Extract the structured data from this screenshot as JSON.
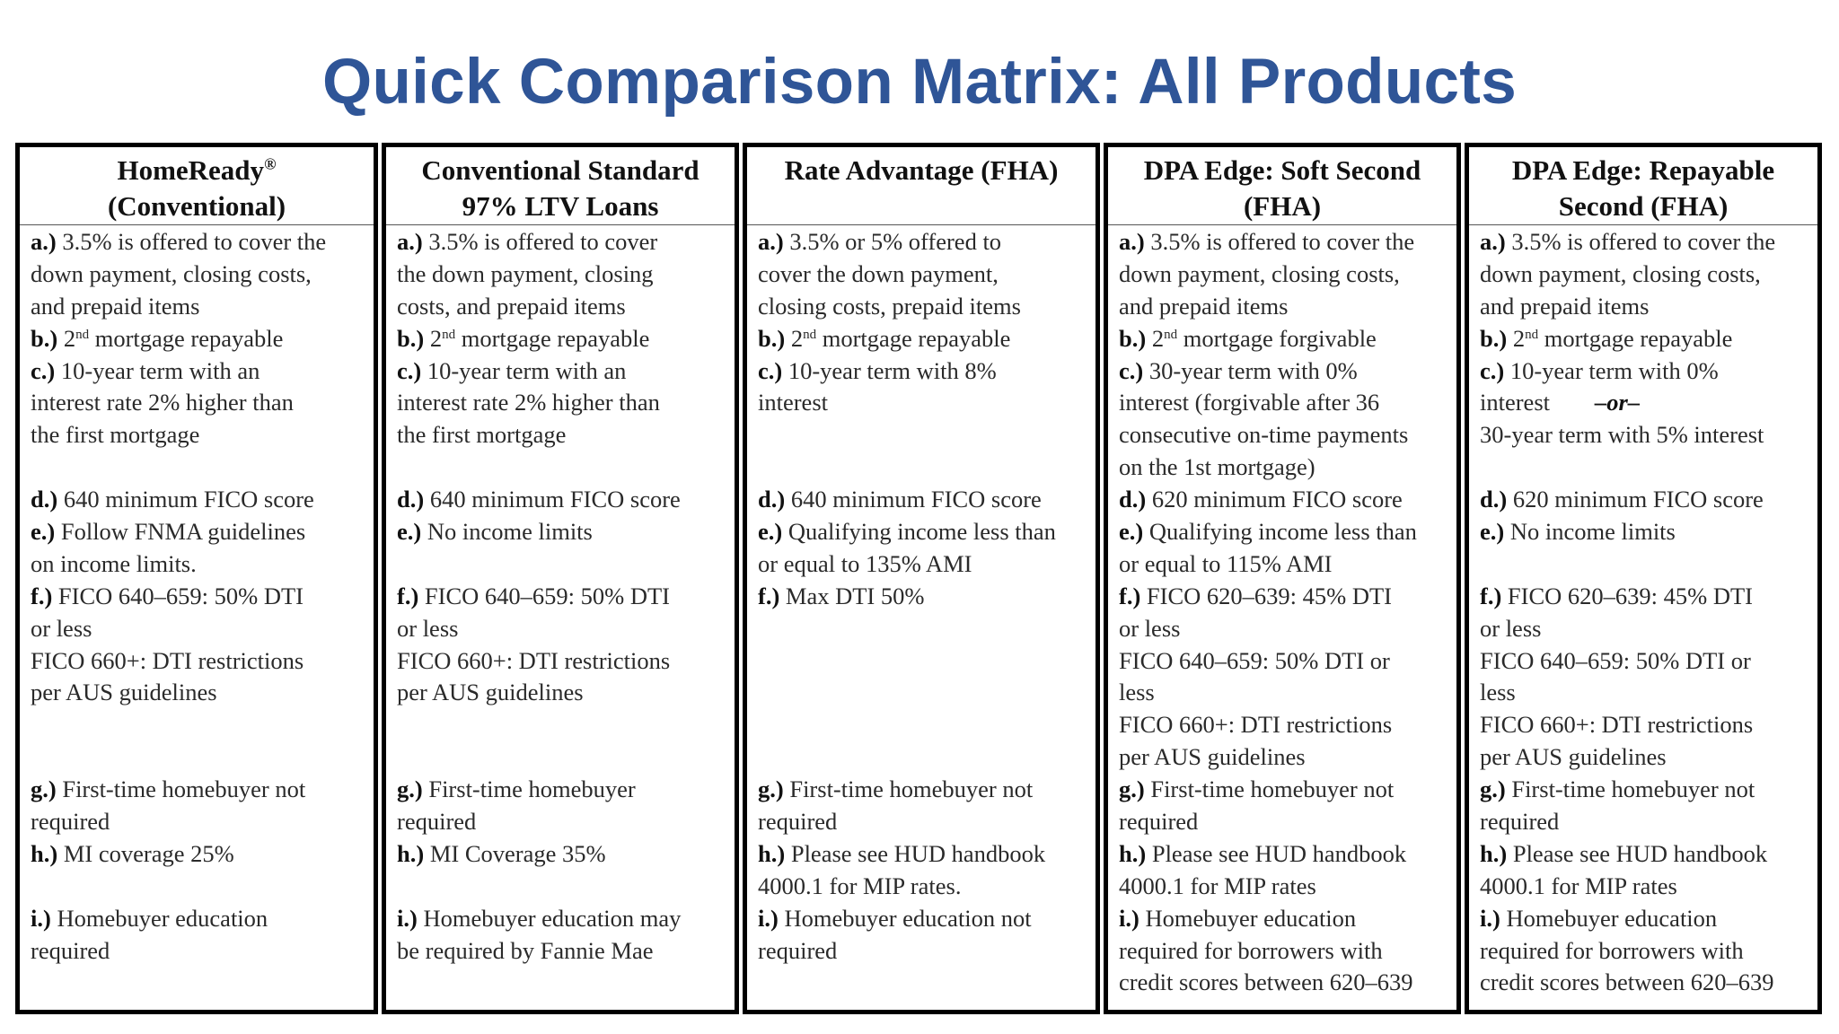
{
  "title": "Quick Comparison Matrix: All Products",
  "columns": [
    {
      "head_line1": "HomeReady",
      "head_mark": "®",
      "head_line2": "(Conventional)",
      "a_label": "a.)",
      "a1": "3.5% is offered to cover the",
      "a2": "down payment, closing costs,",
      "a3": "and prepaid items",
      "b_label": "b.)",
      "b_ord": "2",
      "b_sup": "nd",
      "b_text": "mortgage repayable",
      "c_label": "c.)",
      "c1": "10-year term with an",
      "c2": "interest rate 2% higher than",
      "c3": "the first mortgage",
      "d_label": "d.)",
      "d1": "640 minimum FICO score",
      "e_label": "e.)",
      "e1": "Follow FNMA guidelines",
      "e2": "on income limits.",
      "f_label": "f.)",
      "f1": "FICO 640–659: 50% DTI",
      "f2": "or less",
      "f3": "FICO 660+: DTI restrictions",
      "f4": "per AUS guidelines",
      "g_label": "g.)",
      "g1": "First-time homebuyer not",
      "g2": "required",
      "h_label": "h.)",
      "h1": "MI coverage 25%",
      "i_label": "i.)",
      "i1": "Homebuyer education",
      "i2": "required"
    },
    {
      "head_line1": "Conventional Standard",
      "head_line2": "97% LTV Loans",
      "a_label": "a.)",
      "a1": "3.5% is offered to cover",
      "a2": "the down payment, closing",
      "a3": "costs, and prepaid items",
      "b_label": "b.)",
      "b_ord": "2",
      "b_sup": "nd",
      "b_text": "mortgage repayable",
      "c_label": "c.)",
      "c1": "10-year term with an",
      "c2": "interest rate 2% higher than",
      "c3": "the first mortgage",
      "d_label": "d.)",
      "d1": "640 minimum FICO score",
      "e_label": "e.)",
      "e1": "No income limits",
      "f_label": "f.)",
      "f1": "FICO 640–659: 50% DTI",
      "f2": "or less",
      "f3": "FICO 660+: DTI restrictions",
      "f4": "per AUS guidelines",
      "g_label": "g.)",
      "g1": "First-time homebuyer",
      "g2": "required",
      "h_label": "h.)",
      "h1": "MI Coverage 35%",
      "i_label": "i.)",
      "i1": "Homebuyer education may",
      "i2": "be required by Fannie Mae"
    },
    {
      "head_line1": "Rate Advantage (FHA)",
      "a_label": "a.)",
      "a1": "3.5% or 5% offered to",
      "a2": "cover the down payment,",
      "a3": "closing costs, prepaid items",
      "b_label": "b.)",
      "b_ord": "2",
      "b_sup": "nd",
      "b_text": "mortgage repayable",
      "c_label": "c.)",
      "c1": "10-year term with 8%",
      "c2": "interest",
      "d_label": "d.)",
      "d1": "640 minimum FICO score",
      "e_label": "e.)",
      "e1": "Qualifying income less than",
      "e2": "or equal to 135% AMI",
      "f_label": "f.)",
      "f1": "Max DTI 50%",
      "g_label": "g.)",
      "g1": "First-time homebuyer not",
      "g2": "required",
      "h_label": "h.)",
      "h1": "Please see HUD handbook",
      "h2": "4000.1 for MIP rates.",
      "i_label": "i.)",
      "i1": "Homebuyer education not",
      "i2": "required"
    },
    {
      "head_line1": "DPA Edge: Soft Second",
      "head_line2": "(FHA)",
      "a_label": "a.)",
      "a1": "3.5% is offered to cover the",
      "a2": "down payment, closing costs,",
      "a3": "and prepaid items",
      "b_label": "b.)",
      "b_ord": "2",
      "b_sup": "nd",
      "b_text": "mortgage forgivable",
      "c_label": "c.)",
      "c1": "30-year term with 0%",
      "c2": "interest (forgivable after 36",
      "c3": "consecutive on-time payments",
      "c4": "on the 1st mortgage)",
      "d_label": "d.)",
      "d1": "620 minimum FICO score",
      "e_label": "e.)",
      "e1": "Qualifying income less than",
      "e2": "or equal to 115% AMI",
      "f_label": "f.)",
      "f1": "FICO 620–639: 45% DTI",
      "f2": "or less",
      "f3": "FICO 640–659: 50% DTI or",
      "f4": "less",
      "f5": "FICO 660+: DTI restrictions",
      "f6": "per AUS guidelines",
      "g_label": "g.)",
      "g1": "First-time homebuyer not",
      "g2": "required",
      "h_label": "h.)",
      "h1": "Please see HUD handbook",
      "h2": "4000.1 for MIP rates",
      "i_label": "i.)",
      "i1": "Homebuyer education",
      "i2": "required for borrowers with",
      "i3": "credit scores between 620–639"
    },
    {
      "head_line1": "DPA Edge: Repayable",
      "head_line2": "Second (FHA)",
      "a_label": "a.)",
      "a1": "3.5% is offered to cover the",
      "a2": "down payment, closing costs,",
      "a3": "and prepaid items",
      "b_label": "b.)",
      "b_ord": "2",
      "b_sup": "nd",
      "b_text": "mortgage repayable",
      "c_label": "c.)",
      "c1": "10-year term with 0%",
      "c2": "interest",
      "c_or": "–or–",
      "c3": "30-year term with 5% interest",
      "d_label": "d.)",
      "d1": "620 minimum FICO score",
      "e_label": "e.)",
      "e1": "No income limits",
      "f_label": "f.)",
      "f1": "FICO 620–639: 45% DTI",
      "f2": "or less",
      "f3": "FICO 640–659: 50% DTI or",
      "f4": "less",
      "f5": "FICO 660+: DTI restrictions",
      "f6": "per AUS guidelines",
      "g_label": "g.)",
      "g1": "First-time homebuyer not",
      "g2": "required",
      "h_label": "h.)",
      "h1": "Please see HUD handbook",
      "h2": "4000.1 for MIP rates",
      "i_label": "i.)",
      "i1": "Homebuyer education",
      "i2": "required for borrowers with",
      "i3": "credit scores between 620–639"
    }
  ]
}
